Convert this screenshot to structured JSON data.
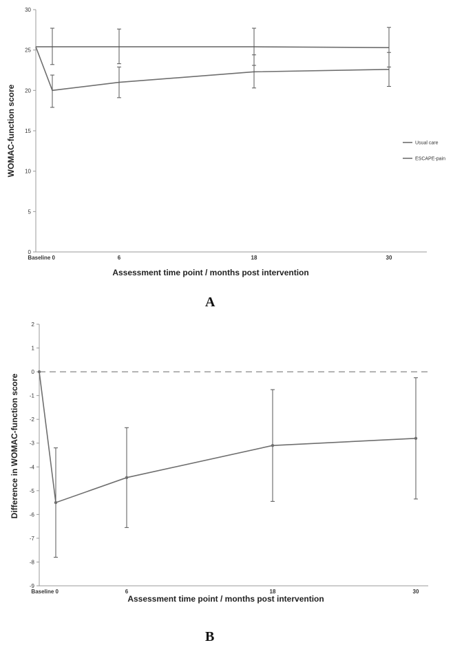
{
  "chart_data": [
    {
      "type": "line",
      "panel_label": "A",
      "xlabel": "Assessment time point / months post intervention",
      "ylabel": "WOMAC-function score",
      "x_tick_labels": [
        "Baseline 0",
        "6",
        "18",
        "30"
      ],
      "x_points": [
        -1,
        0,
        6,
        18,
        30
      ],
      "ylim": [
        0,
        30
      ],
      "y_ticks": [
        0,
        5,
        10,
        15,
        20,
        25,
        30
      ],
      "series": [
        {
          "name": "Usual care",
          "x": [
            -1,
            0,
            6,
            18,
            30
          ],
          "values": [
            25.4,
            25.4,
            25.4,
            25.4,
            25.3
          ],
          "error_low": [
            null,
            23.2,
            23.3,
            23.1,
            22.9
          ],
          "error_high": [
            null,
            27.7,
            27.6,
            27.7,
            27.8
          ]
        },
        {
          "name": "ESCAPE-pain",
          "x": [
            -1,
            0,
            6,
            18,
            30
          ],
          "values": [
            25.4,
            20.0,
            21.0,
            22.3,
            22.6
          ],
          "error_low": [
            null,
            17.9,
            19.1,
            20.3,
            20.5
          ],
          "error_high": [
            null,
            21.9,
            22.9,
            24.4,
            24.7
          ]
        }
      ],
      "legend_position": "right",
      "grid": false,
      "colors": {
        "line": "#6e6e6e",
        "axis": "#999999"
      }
    },
    {
      "type": "line",
      "panel_label": "B",
      "xlabel": "Assessment time point / months post intervention",
      "ylabel": "Difference in WOMAC-function score",
      "x_tick_labels": [
        "Baseline 0",
        "6",
        "18",
        "30"
      ],
      "x_points": [
        -1,
        0,
        6,
        18,
        30
      ],
      "ylim": [
        -9,
        2
      ],
      "y_ticks": [
        -9,
        -8,
        -7,
        -6,
        -5,
        -4,
        -3,
        -2,
        -1,
        0,
        1,
        2
      ],
      "reference_line": 0,
      "series": [
        {
          "name": "",
          "x": [
            -1,
            0,
            6,
            18,
            30
          ],
          "values": [
            0,
            -5.5,
            -4.45,
            -3.1,
            -2.8
          ],
          "error_low": [
            null,
            -7.8,
            -6.55,
            -5.45,
            -5.35
          ],
          "error_high": [
            null,
            -3.2,
            -2.35,
            -0.75,
            -0.25
          ]
        }
      ],
      "grid": false,
      "colors": {
        "line": "#6e6e6e",
        "axis": "#999999",
        "reference": "#9a9a9a"
      }
    }
  ]
}
